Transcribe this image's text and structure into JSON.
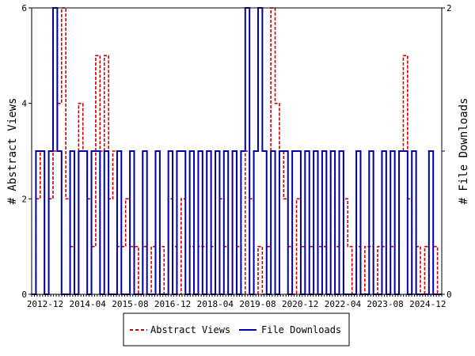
{
  "chart_data": {
    "type": "line",
    "ylabel_left": "# Abstract Views",
    "ylabel_right": "# File Downloads",
    "y_left_range": [
      0,
      6
    ],
    "y_left_ticks": [
      "0",
      "2",
      "4",
      "6"
    ],
    "y_right_range": [
      0,
      2
    ],
    "y_right_ticks": [
      "0",
      "1",
      "2"
    ],
    "x_ticks": [
      "2012-12",
      "2014-04",
      "2015-08",
      "2016-12",
      "2018-04",
      "2019-08",
      "2020-12",
      "2022-04",
      "2023-08",
      "2024-12"
    ],
    "grid": false,
    "legend_position": "bottom-center",
    "series": [
      {
        "name": "Abstract Views",
        "axis": "left",
        "color": "#cc0000",
        "style": "dashed",
        "values": [
          0,
          2,
          3,
          0,
          2,
          3,
          4,
          6,
          2,
          1,
          0,
          4,
          3,
          2,
          1,
          5,
          3,
          5,
          2,
          3,
          1,
          1,
          2,
          1,
          1,
          0,
          1,
          0,
          1,
          0,
          1,
          0,
          2,
          1,
          0,
          2,
          0,
          1,
          0,
          1,
          1,
          0,
          1,
          0,
          2,
          1,
          0,
          3,
          1,
          0,
          3,
          2,
          0,
          1,
          0,
          1,
          6,
          4,
          3,
          2,
          1,
          0,
          2,
          1,
          0,
          1,
          0,
          1,
          1,
          0,
          3,
          1,
          0,
          2,
          1,
          0,
          1,
          0,
          1,
          1,
          0,
          1,
          1,
          0,
          1,
          0,
          3,
          5,
          2,
          0,
          1,
          0,
          1,
          0,
          1,
          0
        ]
      },
      {
        "name": "File Downloads",
        "axis": "right",
        "color": "#0000aa",
        "style": "solid",
        "values": [
          0,
          1,
          1,
          0,
          1,
          2,
          1,
          0,
          0,
          1,
          0,
          1,
          1,
          0,
          1,
          1,
          0,
          1,
          0,
          0,
          1,
          0,
          0,
          1,
          0,
          0,
          1,
          0,
          0,
          1,
          0,
          0,
          1,
          0,
          1,
          1,
          0,
          1,
          0,
          1,
          0,
          1,
          0,
          1,
          0,
          1,
          0,
          1,
          0,
          1,
          2,
          0,
          1,
          2,
          1,
          0,
          1,
          0,
          1,
          1,
          0,
          1,
          1,
          0,
          1,
          0,
          1,
          0,
          1,
          0,
          1,
          0,
          1,
          0,
          0,
          0,
          1,
          0,
          0,
          1,
          0,
          0,
          1,
          0,
          1,
          0,
          1,
          1,
          0,
          1,
          0,
          0,
          0,
          1,
          0,
          0
        ]
      }
    ]
  }
}
